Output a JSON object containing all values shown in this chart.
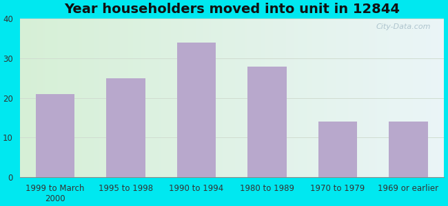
{
  "title": "Year householders moved into unit in 12844",
  "categories": [
    "1999 to March\n2000",
    "1995 to 1998",
    "1990 to 1994",
    "1980 to 1989",
    "1970 to 1979",
    "1969 or earlier"
  ],
  "values": [
    21,
    25,
    34,
    28,
    14,
    14
  ],
  "bar_color": "#b8a8cc",
  "ylim": [
    0,
    40
  ],
  "yticks": [
    0,
    10,
    20,
    30,
    40
  ],
  "bg_outer": "#00e8f0",
  "grid_color": "#e0e8e0",
  "watermark": "City-Data.com",
  "title_fontsize": 14,
  "tick_fontsize": 8.5,
  "bar_width": 0.55
}
